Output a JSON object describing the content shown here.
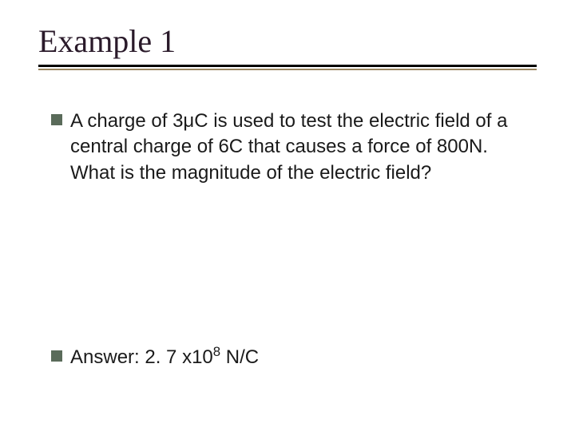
{
  "slide": {
    "title": "Example 1",
    "question": "A charge of 3μC is used to test the electric field of a central charge of 6C that causes a force of 800N. What is the magnitude of the electric field?",
    "answer_prefix": "Answer: 2. 7 x10",
    "answer_exponent": "8",
    "answer_suffix": " N/C"
  },
  "style": {
    "title_font": "Times New Roman",
    "title_fontsize": 40,
    "title_color": "#2a1a2a",
    "body_font": "Arial",
    "body_fontsize": 24,
    "body_color": "#1a1a1a",
    "bullet_color": "#5a6b5a",
    "bullet_size": 14,
    "underline_top_color": "#000000",
    "underline_bottom_color": "#9a8560",
    "background_color": "#ffffff",
    "slide_width": 720,
    "slide_height": 540
  }
}
